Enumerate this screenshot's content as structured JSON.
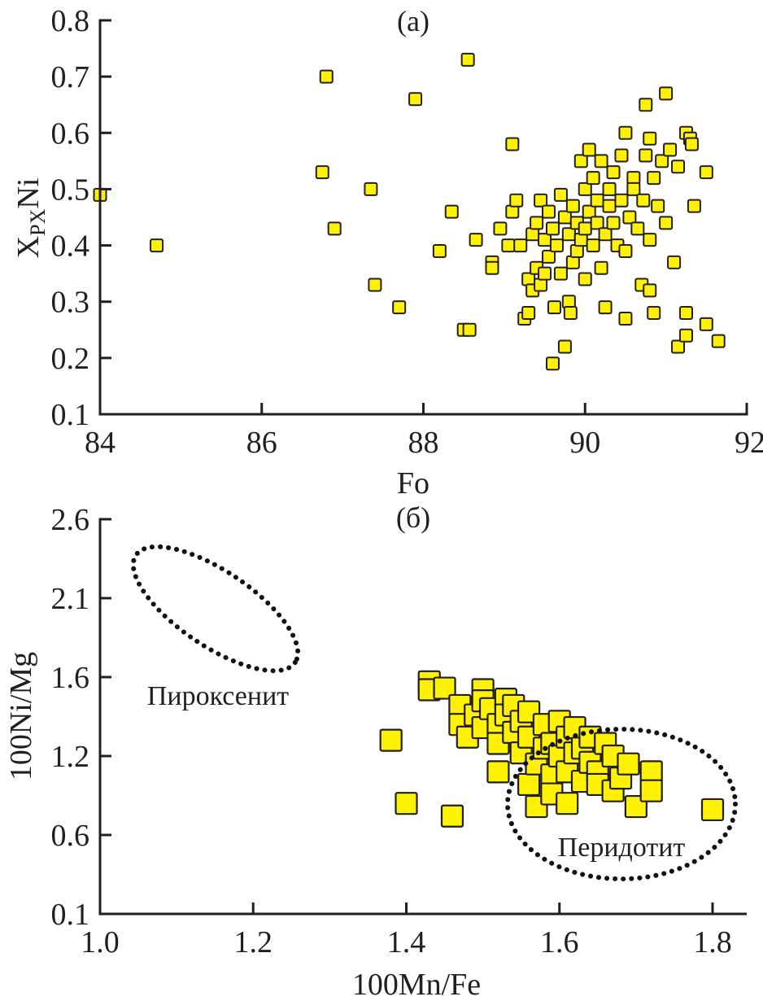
{
  "chart_data": [
    {
      "type": "scatter",
      "panel_label": "(a)",
      "title": "",
      "xlabel": "Fo",
      "ylabel_main": "X",
      "ylabel_sub": "PX",
      "ylabel_tail": "Ni",
      "xlim": [
        84,
        92
      ],
      "ylim": [
        0.1,
        0.8
      ],
      "xticks": [
        "84",
        "86",
        "88",
        "90",
        "92"
      ],
      "xtick_values": [
        84,
        86,
        88,
        90,
        92
      ],
      "yticks": [
        "0.8",
        "0.7",
        "0.6",
        "0.5",
        "0.4",
        "0.3",
        "0.2",
        "0.1"
      ],
      "ytick_values": [
        0.8,
        0.7,
        0.6,
        0.5,
        0.4,
        0.3,
        0.2,
        0.1
      ],
      "grid": false,
      "marker": {
        "shape": "square",
        "fill": "#fff200",
        "edge": "#231f20"
      },
      "points": [
        [
          84.0,
          0.49
        ],
        [
          84.7,
          0.4
        ],
        [
          86.75,
          0.53
        ],
        [
          86.8,
          0.7
        ],
        [
          86.9,
          0.43
        ],
        [
          87.35,
          0.5
        ],
        [
          87.4,
          0.33
        ],
        [
          87.7,
          0.29
        ],
        [
          87.9,
          0.66
        ],
        [
          88.2,
          0.39
        ],
        [
          88.35,
          0.46
        ],
        [
          88.5,
          0.25
        ],
        [
          88.57,
          0.25
        ],
        [
          88.55,
          0.73
        ],
        [
          88.65,
          0.41
        ],
        [
          88.85,
          0.37
        ],
        [
          88.85,
          0.36
        ],
        [
          88.95,
          0.43
        ],
        [
          89.05,
          0.4
        ],
        [
          89.1,
          0.58
        ],
        [
          89.1,
          0.46
        ],
        [
          89.15,
          0.48
        ],
        [
          89.2,
          0.4
        ],
        [
          89.25,
          0.27
        ],
        [
          89.3,
          0.34
        ],
        [
          89.3,
          0.28
        ],
        [
          89.35,
          0.42
        ],
        [
          89.35,
          0.32
        ],
        [
          89.4,
          0.44
        ],
        [
          89.4,
          0.36
        ],
        [
          89.45,
          0.48
        ],
        [
          89.45,
          0.33
        ],
        [
          89.5,
          0.41
        ],
        [
          89.5,
          0.35
        ],
        [
          89.55,
          0.46
        ],
        [
          89.55,
          0.38
        ],
        [
          89.6,
          0.43
        ],
        [
          89.6,
          0.19
        ],
        [
          89.62,
          0.29
        ],
        [
          89.65,
          0.4
        ],
        [
          89.7,
          0.49
        ],
        [
          89.7,
          0.35
        ],
        [
          89.75,
          0.45
        ],
        [
          89.75,
          0.22
        ],
        [
          89.8,
          0.42
        ],
        [
          89.8,
          0.3
        ],
        [
          89.82,
          0.28
        ],
        [
          89.85,
          0.47
        ],
        [
          89.85,
          0.37
        ],
        [
          89.9,
          0.44
        ],
        [
          89.9,
          0.39
        ],
        [
          89.95,
          0.55
        ],
        [
          89.95,
          0.41
        ],
        [
          90.0,
          0.5
        ],
        [
          90.0,
          0.43
        ],
        [
          90.0,
          0.34
        ],
        [
          90.05,
          0.57
        ],
        [
          90.05,
          0.46
        ],
        [
          90.1,
          0.4
        ],
        [
          90.1,
          0.52
        ],
        [
          90.15,
          0.48
        ],
        [
          90.15,
          0.44
        ],
        [
          90.2,
          0.55
        ],
        [
          90.2,
          0.36
        ],
        [
          90.25,
          0.42
        ],
        [
          90.25,
          0.29
        ],
        [
          90.3,
          0.5
        ],
        [
          90.3,
          0.47
        ],
        [
          90.35,
          0.53
        ],
        [
          90.35,
          0.44
        ],
        [
          90.4,
          0.4
        ],
        [
          90.45,
          0.56
        ],
        [
          90.45,
          0.48
        ],
        [
          90.5,
          0.6
        ],
        [
          90.5,
          0.39
        ],
        [
          90.5,
          0.27
        ],
        [
          90.55,
          0.45
        ],
        [
          90.6,
          0.52
        ],
        [
          90.6,
          0.5
        ],
        [
          90.65,
          0.43
        ],
        [
          90.7,
          0.33
        ],
        [
          90.72,
          0.48
        ],
        [
          90.75,
          0.56
        ],
        [
          90.75,
          0.65
        ],
        [
          90.8,
          0.32
        ],
        [
          90.8,
          0.59
        ],
        [
          90.8,
          0.41
        ],
        [
          90.85,
          0.28
        ],
        [
          90.85,
          0.52
        ],
        [
          90.9,
          0.47
        ],
        [
          90.95,
          0.55
        ],
        [
          91.0,
          0.67
        ],
        [
          91.0,
          0.44
        ],
        [
          91.05,
          0.57
        ],
        [
          91.1,
          0.37
        ],
        [
          91.15,
          0.54
        ],
        [
          91.15,
          0.22
        ],
        [
          91.25,
          0.6
        ],
        [
          91.25,
          0.28
        ],
        [
          91.25,
          0.24
        ],
        [
          91.3,
          0.59
        ],
        [
          91.32,
          0.58
        ],
        [
          91.35,
          0.47
        ],
        [
          91.5,
          0.53
        ],
        [
          91.5,
          0.26
        ],
        [
          91.65,
          0.23
        ]
      ]
    },
    {
      "type": "scatter",
      "panel_label": "(б)",
      "title": "",
      "xlabel": "100Mn/Fe",
      "ylabel": "100Ni/Mg",
      "xlim": [
        1.0,
        1.84
      ],
      "xticks": [
        "1.0",
        "1.2",
        "1.4",
        "1.6",
        "1.8"
      ],
      "xtick_values": [
        1.0,
        1.2,
        1.4,
        1.6,
        1.8
      ],
      "yticks": [
        "2.6",
        "2.1",
        "1.6",
        "1.2",
        "0.6",
        "0.1"
      ],
      "ytick_note": "tick labels as printed; ticks are evenly spaced (step 0.5)",
      "ylim": [
        0.1,
        2.6
      ],
      "grid": false,
      "marker": {
        "shape": "square",
        "fill": "#fff200",
        "edge": "#1f1f1f"
      },
      "regions": [
        {
          "name": "Пироксенит",
          "shape": "dotted-ellipse",
          "center": [
            1.155,
            2.03
          ],
          "x_extent": [
            1.04,
            1.27
          ],
          "y_extent": [
            1.58,
            2.45
          ]
        },
        {
          "name": "Перидотит",
          "shape": "dotted-ellipse",
          "center": [
            1.685,
            0.72
          ],
          "x_extent": [
            1.54,
            1.83
          ],
          "y_extent": [
            0.28,
            1.19
          ]
        }
      ],
      "points": [
        [
          1.38,
          1.2
        ],
        [
          1.4,
          0.8
        ],
        [
          1.46,
          0.72
        ],
        [
          1.43,
          1.57
        ],
        [
          1.43,
          1.52
        ],
        [
          1.45,
          1.53
        ],
        [
          1.47,
          1.42
        ],
        [
          1.47,
          1.3
        ],
        [
          1.48,
          1.22
        ],
        [
          1.49,
          1.36
        ],
        [
          1.5,
          1.52
        ],
        [
          1.5,
          1.45
        ],
        [
          1.5,
          1.28
        ],
        [
          1.51,
          1.4
        ],
        [
          1.52,
          1.3
        ],
        [
          1.52,
          1.18
        ],
        [
          1.52,
          1.0
        ],
        [
          1.53,
          1.46
        ],
        [
          1.53,
          1.36
        ],
        [
          1.54,
          1.25
        ],
        [
          1.54,
          1.42
        ],
        [
          1.55,
          1.32
        ],
        [
          1.55,
          1.12
        ],
        [
          1.56,
          1.38
        ],
        [
          1.56,
          1.22
        ],
        [
          1.56,
          0.92
        ],
        [
          1.57,
          0.78
        ],
        [
          1.57,
          1.05
        ],
        [
          1.58,
          1.3
        ],
        [
          1.58,
          1.15
        ],
        [
          1.59,
          1.18
        ],
        [
          1.59,
          0.98
        ],
        [
          1.59,
          0.86
        ],
        [
          1.6,
          1.32
        ],
        [
          1.6,
          1.1
        ],
        [
          1.61,
          1.22
        ],
        [
          1.61,
          1.0
        ],
        [
          1.61,
          0.8
        ],
        [
          1.62,
          1.28
        ],
        [
          1.62,
          1.12
        ],
        [
          1.63,
          1.15
        ],
        [
          1.63,
          0.94
        ],
        [
          1.64,
          1.06
        ],
        [
          1.64,
          1.22
        ],
        [
          1.65,
          1.0
        ],
        [
          1.65,
          0.92
        ],
        [
          1.66,
          1.18
        ],
        [
          1.67,
          1.1
        ],
        [
          1.67,
          0.88
        ],
        [
          1.68,
          0.96
        ],
        [
          1.69,
          1.05
        ],
        [
          1.7,
          0.78
        ],
        [
          1.72,
          1.0
        ],
        [
          1.72,
          0.88
        ],
        [
          1.8,
          0.76
        ]
      ]
    }
  ],
  "chart_labels": {
    "a": {
      "panel": "(a)",
      "xlabel": "Fo",
      "ylabel_main": "X",
      "ylabel_sub": "PX",
      "ylabel_tail": "Ni"
    },
    "b": {
      "panel": "(б)",
      "xlabel": "100Mn/Fe",
      "ylabel": "100Ni/Mg",
      "region_pyroxenite": "Пироксенит",
      "region_peridotite": "Перидотит"
    }
  }
}
